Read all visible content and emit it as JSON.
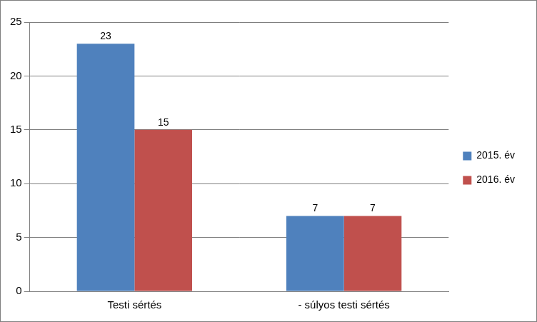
{
  "chart_data": {
    "type": "bar",
    "categories": [
      "Testi sértés",
      "- súlyos testi sértés"
    ],
    "series": [
      {
        "name": "2015. év",
        "color": "#4f81bd",
        "values": [
          23,
          7
        ]
      },
      {
        "name": "2016. év",
        "color": "#c0504d",
        "values": [
          15,
          7
        ]
      }
    ],
    "ylim": [
      0,
      25
    ],
    "yticks": [
      0,
      5,
      10,
      15,
      20,
      25
    ],
    "grid": true,
    "legend": "right",
    "data_labels": true
  }
}
